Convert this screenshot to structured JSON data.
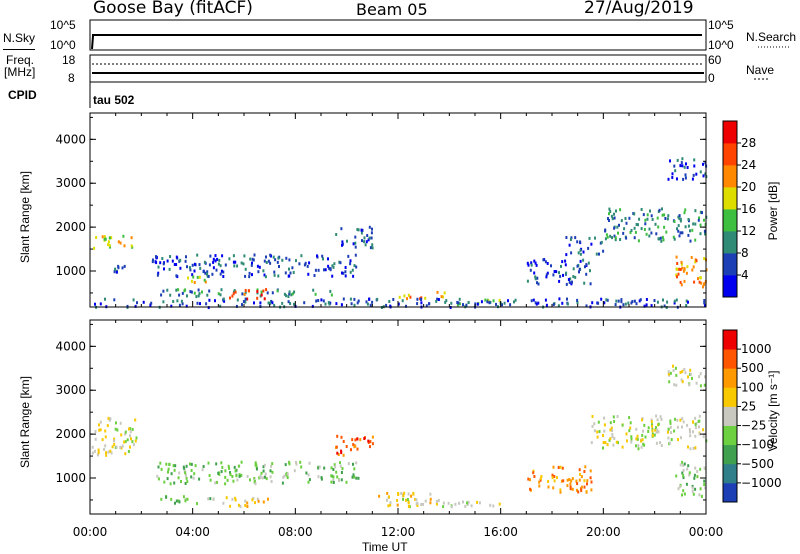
{
  "header": {
    "station": "Goose Bay (fitACF)",
    "beam": "Beam 05",
    "date": "27/Aug/2019"
  },
  "nsky_panel": {
    "left_label": "N.Sky",
    "left_ticks": [
      "10^5",
      "10^0"
    ],
    "right_ticks": [
      "10^5",
      "10^0"
    ],
    "right_label": "N.Search"
  },
  "freq_panel": {
    "left_label_1": "Freq.",
    "left_label_2": "[MHz]",
    "left_ticks": [
      "18",
      "8"
    ],
    "right_ticks": [
      "60",
      "0"
    ],
    "right_label": "Nave"
  },
  "cpid_panel": {
    "label": "CPID",
    "value": "tau 502"
  },
  "chart_data": [
    {
      "type": "heatmap",
      "name": "power",
      "ylabel": "Slant Range [km]",
      "y_ticks": [
        "4000",
        "3000",
        "2000",
        "1000"
      ],
      "ylim": [
        180,
        4600
      ],
      "xlim_hours": [
        0,
        24
      ],
      "colorbar_label": "Power [dB]",
      "colorbar_ticks": [
        "28",
        "24",
        "20",
        "16",
        "12",
        "8",
        "4"
      ],
      "colorbar_colors": [
        "#0000ee",
        "#1d3fb6",
        "#2f8a76",
        "#3fbf3f",
        "#dddd00",
        "#ff8800",
        "#ff4400",
        "#ee0000"
      ],
      "clusters": [
        {
          "x": [
            0.05,
            1.8
          ],
          "y": [
            1550,
            1850
          ],
          "level": 4
        },
        {
          "x": [
            0.9,
            1.4
          ],
          "y": [
            1000,
            1300
          ],
          "level": 1
        },
        {
          "x": [
            2.4,
            10.5
          ],
          "y": [
            900,
            1400
          ],
          "level": 1
        },
        {
          "x": [
            2.5,
            9.5
          ],
          "y": [
            450,
            620
          ],
          "level": 2
        },
        {
          "x": [
            5.4,
            7.0
          ],
          "y": [
            380,
            620
          ],
          "level": 6
        },
        {
          "x": [
            3.6,
            4.6
          ],
          "y": [
            760,
            900
          ],
          "level": 4
        },
        {
          "x": [
            9.5,
            11.0
          ],
          "y": [
            1550,
            2050
          ],
          "level": 1
        },
        {
          "x": [
            12.0,
            14.0
          ],
          "y": [
            400,
            550
          ],
          "level": 5
        },
        {
          "x": [
            14.0,
            16.0
          ],
          "y": [
            250,
            380
          ],
          "level": 3
        },
        {
          "x": [
            17.0,
            19.5
          ],
          "y": [
            700,
            1300
          ],
          "level": 1
        },
        {
          "x": [
            18.5,
            20.0
          ],
          "y": [
            1400,
            1800
          ],
          "level": 1
        },
        {
          "x": [
            20.0,
            24.0
          ],
          "y": [
            1700,
            2450
          ],
          "level": 2
        },
        {
          "x": [
            22.8,
            24.0
          ],
          "y": [
            600,
            1400
          ],
          "level": 5
        },
        {
          "x": [
            22.5,
            24.0
          ],
          "y": [
            3100,
            3600
          ],
          "level": 1
        },
        {
          "x": [
            0.0,
            24.0
          ],
          "y": [
            200,
            400
          ],
          "level": 1
        }
      ]
    },
    {
      "type": "heatmap",
      "name": "velocity",
      "ylabel": "Slant Range [km]",
      "y_ticks": [
        "4000",
        "3000",
        "2000",
        "1000"
      ],
      "ylim": [
        180,
        4600
      ],
      "xlim_hours": [
        0,
        24
      ],
      "colorbar_label": "Velocity [m s⁻¹]",
      "colorbar_ticks": [
        "1000",
        "500",
        "100",
        "25",
        "−25",
        "−100",
        "−500",
        "−1000"
      ],
      "colorbar_colors": [
        "#1c3fb6",
        "#2f7f8a",
        "#3fa050",
        "#6cd040",
        "#c8c8c0",
        "#f8c800",
        "#ff9900",
        "#ff5500",
        "#ee0000"
      ],
      "clusters": [
        {
          "x": [
            0.05,
            1.8
          ],
          "y": [
            1550,
            2400
          ],
          "level": 4
        },
        {
          "x": [
            2.4,
            10.5
          ],
          "y": [
            900,
            1400
          ],
          "level": 3
        },
        {
          "x": [
            2.5,
            5.0
          ],
          "y": [
            450,
            620
          ],
          "level": 3
        },
        {
          "x": [
            5.0,
            7.0
          ],
          "y": [
            380,
            620
          ],
          "level": 5
        },
        {
          "x": [
            9.5,
            11.0
          ],
          "y": [
            1550,
            2050
          ],
          "level": 7
        },
        {
          "x": [
            11.2,
            13.5
          ],
          "y": [
            400,
            700
          ],
          "level": 5
        },
        {
          "x": [
            12.0,
            16.0
          ],
          "y": [
            350,
            550
          ],
          "level": 4
        },
        {
          "x": [
            17.0,
            19.5
          ],
          "y": [
            700,
            1300
          ],
          "level": 6
        },
        {
          "x": [
            19.5,
            24.0
          ],
          "y": [
            1700,
            2450
          ],
          "level": 4
        },
        {
          "x": [
            22.8,
            24.0
          ],
          "y": [
            600,
            1400
          ],
          "level": 3
        },
        {
          "x": [
            22.5,
            24.0
          ],
          "y": [
            3100,
            3600
          ],
          "level": 4
        }
      ]
    }
  ],
  "time_axis": {
    "tick_labels": [
      "00:00",
      "04:00",
      "08:00",
      "12:00",
      "16:00",
      "20:00",
      "00:00"
    ],
    "xlabel": "Time UT"
  },
  "colors": {
    "frame": "#000000",
    "nsky_line": "#000000"
  }
}
